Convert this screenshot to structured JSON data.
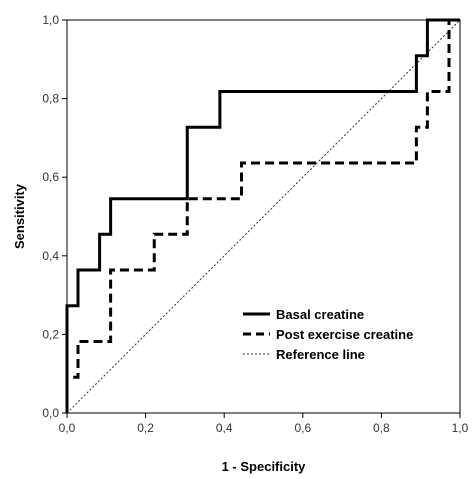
{
  "chart_data": {
    "type": "line",
    "xlabel": "1 - Specificity",
    "ylabel": "Sensitivity",
    "xlim": [
      0,
      1
    ],
    "ylim": [
      0,
      1
    ],
    "xticks": [
      "0,0",
      "0,2",
      "0,4",
      "0,6",
      "0,8",
      "1,0"
    ],
    "yticks": [
      "0,0",
      "0,2",
      "0,4",
      "0,6",
      "0,8",
      "1,0"
    ],
    "grid": false,
    "legend_position": "bottom-right",
    "series": [
      {
        "name": "Basal creatine",
        "style": "solid",
        "color": "#000000",
        "x": [
          0.0,
          0.0,
          0.028,
          0.028,
          0.083,
          0.083,
          0.111,
          0.111,
          0.306,
          0.306,
          0.389,
          0.389,
          0.889,
          0.889,
          0.917,
          0.917,
          1.0
        ],
        "y": [
          0.0,
          0.273,
          0.273,
          0.364,
          0.364,
          0.455,
          0.455,
          0.545,
          0.545,
          0.727,
          0.727,
          0.818,
          0.818,
          0.909,
          0.909,
          1.0,
          1.0
        ]
      },
      {
        "name": "Post exercise creatine",
        "style": "dashed",
        "color": "#000000",
        "x": [
          0.0,
          0.0,
          0.028,
          0.028,
          0.111,
          0.111,
          0.222,
          0.222,
          0.306,
          0.306,
          0.444,
          0.444,
          0.889,
          0.889,
          0.917,
          0.917,
          0.972,
          0.972,
          1.0
        ],
        "y": [
          0.0,
          0.091,
          0.091,
          0.182,
          0.182,
          0.364,
          0.364,
          0.455,
          0.455,
          0.545,
          0.545,
          0.636,
          0.636,
          0.727,
          0.727,
          0.818,
          0.818,
          1.0,
          1.0
        ]
      },
      {
        "name": "Reference line",
        "style": "dotted",
        "color": "#333333",
        "x": [
          0,
          1
        ],
        "y": [
          0,
          1
        ]
      }
    ]
  }
}
